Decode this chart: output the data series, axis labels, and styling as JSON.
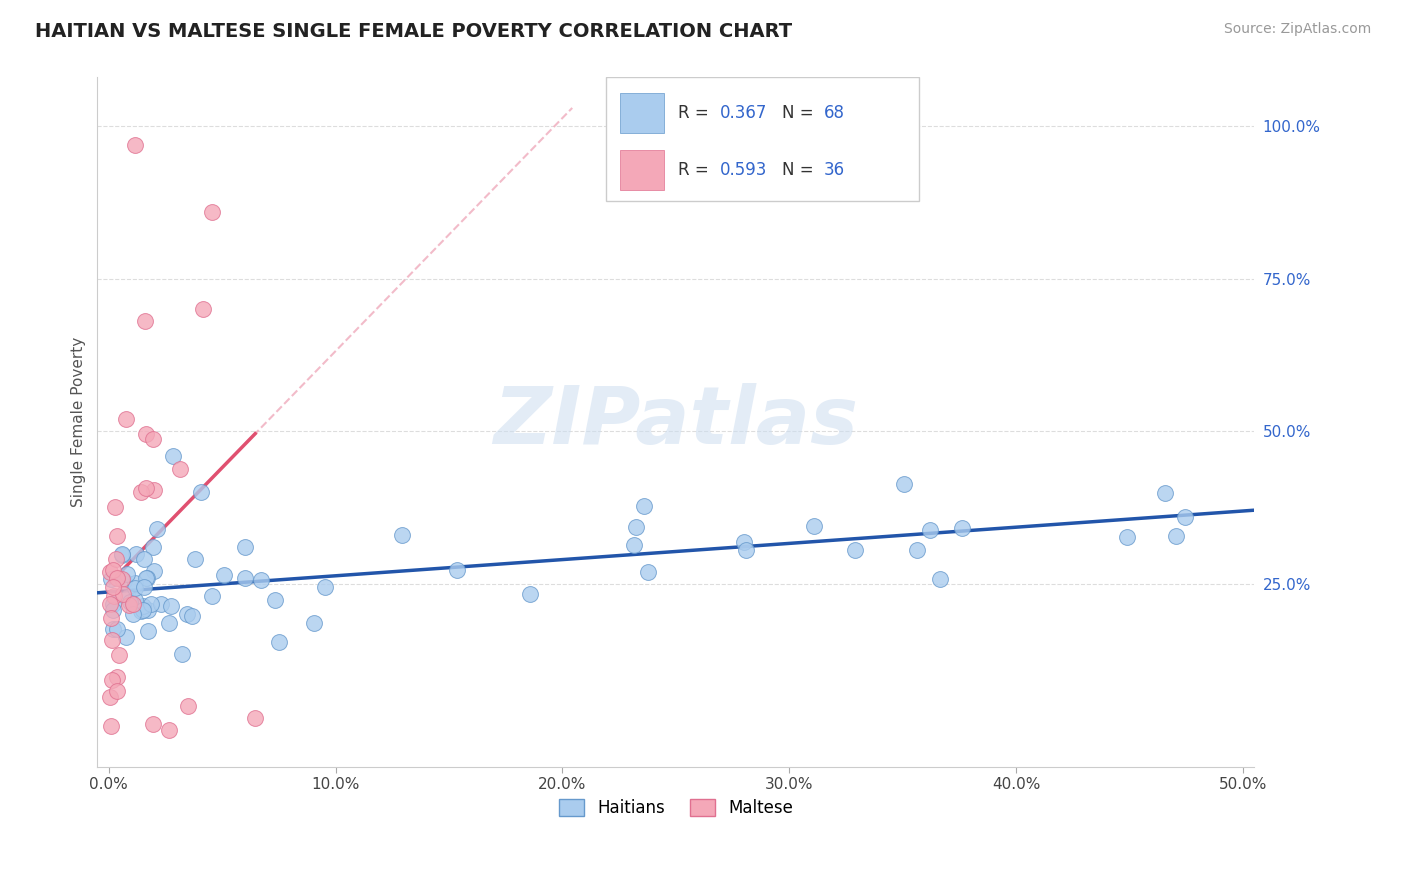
{
  "title": "HAITIAN VS MALTESE SINGLE FEMALE POVERTY CORRELATION CHART",
  "source": "Source: ZipAtlas.com",
  "ylabel": "Single Female Poverty",
  "xlim": [
    -0.005,
    0.505
  ],
  "ylim": [
    -0.05,
    1.08
  ],
  "xtick_labels": [
    "0.0%",
    "10.0%",
    "20.0%",
    "30.0%",
    "40.0%",
    "50.0%"
  ],
  "xtick_vals": [
    0.0,
    0.1,
    0.2,
    0.3,
    0.4,
    0.5
  ],
  "ytick_right_vals": [
    1.0,
    0.75,
    0.5,
    0.25
  ],
  "ytick_right_labels": [
    "100.0%",
    "75.0%",
    "50.0%",
    "25.0%"
  ],
  "haitian_color": "#aaccee",
  "maltese_color": "#f4a8b8",
  "haitian_edge": "#6699cc",
  "maltese_edge": "#e07090",
  "haitian_line_color": "#2255aa",
  "maltese_line_color": "#e05070",
  "maltese_dash_color": "#f0b0c0",
  "haitian_R": 0.367,
  "haitian_N": 68,
  "maltese_R": 0.593,
  "maltese_N": 36,
  "legend_color": "#3366cc",
  "background_color": "#ffffff",
  "grid_color": "#dddddd",
  "watermark_text": "ZIPatlas",
  "legend_label_1": "R = 0.367   N = 68",
  "legend_label_2": "R = 0.593   N = 36",
  "bottom_label_1": "Haitians",
  "bottom_label_2": "Maltese"
}
